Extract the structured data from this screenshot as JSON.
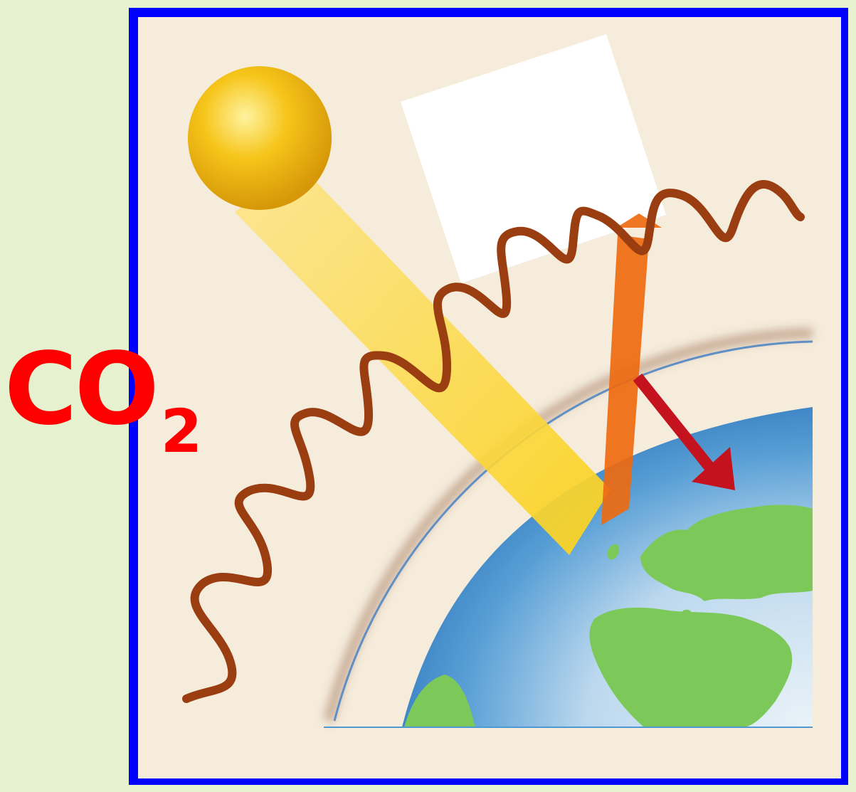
{
  "label": {
    "main": "CO",
    "subscript": "2"
  },
  "colors": {
    "page_background": "#e6f2cf",
    "frame_border": "#0000ff",
    "panel_background": "#f5ecdc",
    "sun": "#f6c51a",
    "sunlight_beam": "#fcd93a",
    "reflected_beam": "#ee6a10",
    "outgoing_arrow": "#c4121e",
    "infrared_wave": "#9a3d10",
    "ocean": "#4f98d2",
    "land": "#7cc95a",
    "label_text": "#ff0000",
    "blank_card": "#ffffff"
  },
  "icons": [
    "sun-icon",
    "earth-globe",
    "atmosphere-layer",
    "sunlight-beam",
    "reflected-beam",
    "outgoing-heat-arrow",
    "infrared-wave",
    "blank-card"
  ]
}
